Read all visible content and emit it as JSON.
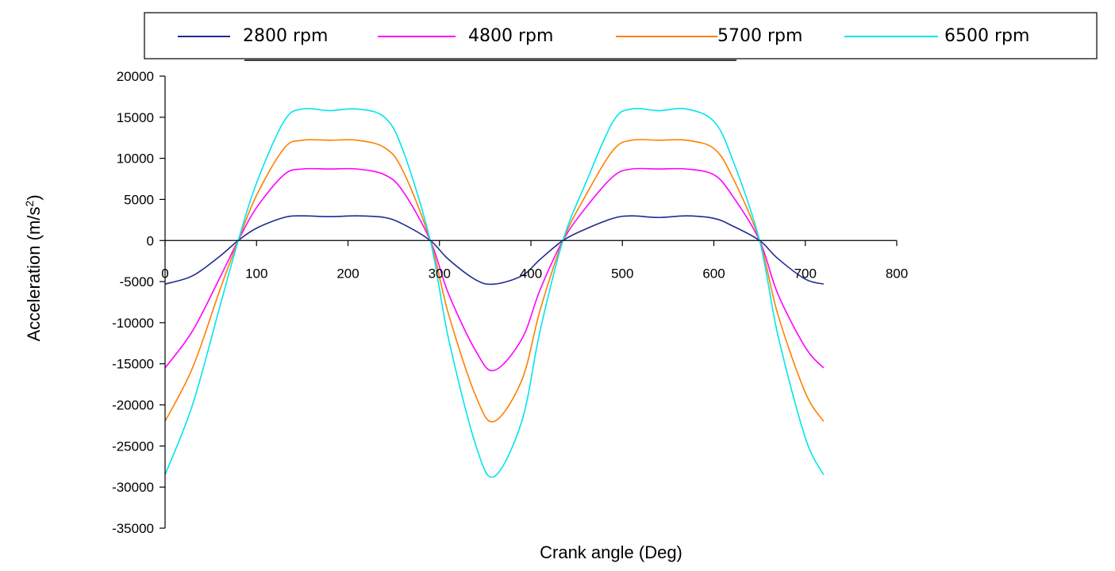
{
  "chart_data": {
    "type": "line",
    "title": "",
    "xlabel": "Crank angle  (Deg)",
    "ylabel": "Acceleration (m/s",
    "ylabel_superscript": "2",
    "ylabel_suffix": ")",
    "xlim": [
      0,
      800
    ],
    "ylim": [
      -35000,
      20000
    ],
    "xticks": [
      "0",
      "100",
      "200",
      "300",
      "400",
      "500",
      "600",
      "700",
      "800"
    ],
    "yticks": [
      "20000",
      "15000",
      "10000",
      "5000",
      "0",
      "-5000",
      "-10000",
      "-15000",
      "-20000",
      "-25000",
      "-30000",
      "-35000"
    ],
    "grid": false,
    "legend_position": "top",
    "x": [
      0,
      30,
      60,
      80,
      100,
      130,
      150,
      180,
      210,
      240,
      260,
      290,
      310,
      340,
      360,
      390,
      410,
      435,
      460,
      490,
      510,
      540,
      570,
      600,
      620,
      650,
      670,
      700,
      720
    ],
    "series": [
      {
        "name": "2800 rpm",
        "color": "#1f2b8f",
        "values": [
          -5300,
          -4300,
          -1900,
          0,
          1500,
          2800,
          3000,
          2900,
          3000,
          2800,
          2000,
          0,
          -2300,
          -4800,
          -5300,
          -4300,
          -2300,
          0,
          1400,
          2700,
          3000,
          2800,
          3000,
          2700,
          1800,
          0,
          -2200,
          -4700,
          -5300
        ]
      },
      {
        "name": "4800 rpm",
        "color": "#ff00ff",
        "values": [
          -15500,
          -11000,
          -4500,
          0,
          4000,
          8000,
          8700,
          8700,
          8700,
          8000,
          6000,
          0,
          -6500,
          -13500,
          -15800,
          -12000,
          -6000,
          0,
          4000,
          7800,
          8700,
          8700,
          8700,
          8000,
          5500,
          0,
          -6500,
          -13000,
          -15500
        ]
      },
      {
        "name": "5700 rpm",
        "color": "#ff7f00",
        "values": [
          -22000,
          -15500,
          -6000,
          0,
          5500,
          11200,
          12200,
          12200,
          12200,
          11300,
          8500,
          0,
          -9000,
          -19000,
          -22000,
          -17000,
          -8500,
          0,
          5500,
          11000,
          12200,
          12200,
          12200,
          11200,
          7800,
          0,
          -9000,
          -18500,
          -22000
        ]
      },
      {
        "name": "6500 rpm",
        "color": "#00e5ee",
        "values": [
          -28500,
          -20000,
          -8000,
          0,
          7000,
          14500,
          16000,
          15800,
          16000,
          15000,
          11000,
          0,
          -12000,
          -25000,
          -28700,
          -22000,
          -11000,
          0,
          7000,
          14500,
          16000,
          15800,
          16000,
          14500,
          10000,
          0,
          -11500,
          -24000,
          -28500
        ]
      }
    ]
  }
}
